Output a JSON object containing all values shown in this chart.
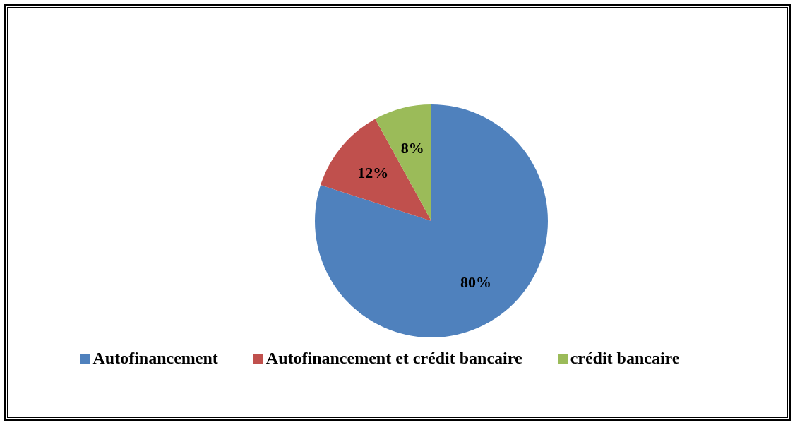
{
  "chart_data": {
    "type": "pie",
    "categories": [
      "Autofinancement",
      "Autofinancement et crédit bancaire",
      "crédit bancaire"
    ],
    "values": [
      80,
      12,
      8
    ],
    "colors": [
      "#4f81bd",
      "#c0504d",
      "#9bbb59"
    ],
    "value_labels": [
      "80%",
      "12%",
      "8%"
    ],
    "legend": "bottom"
  }
}
